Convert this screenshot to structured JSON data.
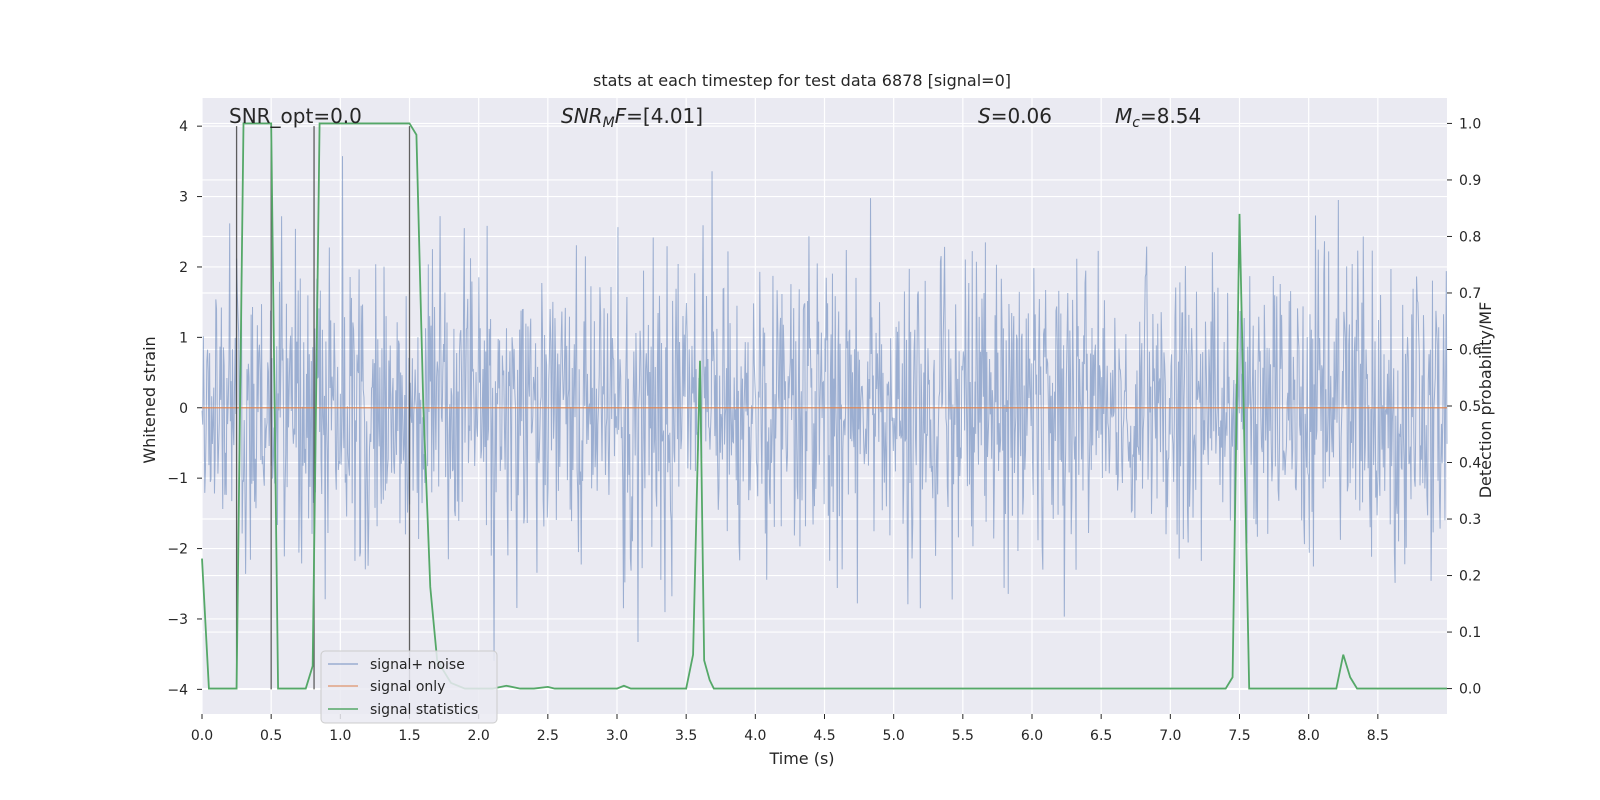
{
  "chart_data": {
    "type": "line",
    "title": "stats at each timestep for test data 6878 [signal=0]",
    "xlabel": "Time (s)",
    "ylabel": "Whitened strain",
    "ylabel_right": "Detection probability/MF",
    "xlim": [
      0,
      9
    ],
    "ylim": [
      -4.35,
      4.4
    ],
    "ylim_right": [
      -0.045,
      1.045
    ],
    "x_ticks": [
      "0.0",
      "0.5",
      "1.0",
      "1.5",
      "2.0",
      "2.5",
      "3.0",
      "3.5",
      "4.0",
      "4.5",
      "5.0",
      "5.5",
      "6.0",
      "6.5",
      "7.0",
      "7.5",
      "8.0",
      "8.5"
    ],
    "y_ticks": [
      "−4",
      "−3",
      "−2",
      "−1",
      "0",
      "1",
      "2",
      "3",
      "4"
    ],
    "y_ticks_right": [
      "0.0",
      "0.1",
      "0.2",
      "0.3",
      "0.4",
      "0.5",
      "0.6",
      "0.7",
      "0.8",
      "0.9",
      "1.0"
    ],
    "grid": true,
    "legend_position": "lower-left",
    "annotations": {
      "snr_opt": "SNR_opt=0.0",
      "snr_mf": "=[4.01]",
      "snr_mf_symbol": "SNR",
      "snr_mf_sub": "M",
      "snr_mf_tail": "F",
      "s_symbol": "S",
      "s_value": "=0.06",
      "mc_symbol": "M",
      "mc_sub": "c",
      "mc_value": "=8.54"
    },
    "series": [
      {
        "name": "signal+ noise",
        "color": "#4c72b0",
        "description_values": "white-ish Gaussian noise, amplitude roughly within [-3.6, 4.0]",
        "axis": "left"
      },
      {
        "name": "signal only",
        "color": "#dd8452",
        "values_constant": 0,
        "axis": "left"
      },
      {
        "name": "signal statistics",
        "color": "#55a868",
        "axis": "right",
        "x": [
          0.0,
          0.05,
          0.1,
          0.15,
          0.2,
          0.25,
          0.3,
          0.35,
          0.4,
          0.45,
          0.5,
          0.55,
          0.6,
          0.65,
          0.7,
          0.75,
          0.8,
          0.85,
          0.9,
          0.95,
          1.0,
          1.1,
          1.2,
          1.3,
          1.4,
          1.5,
          1.55,
          1.6,
          1.65,
          1.7,
          1.8,
          1.9,
          2.0,
          2.1,
          2.2,
          2.3,
          2.4,
          2.5,
          2.55,
          2.6,
          2.7,
          2.8,
          2.9,
          3.0,
          3.05,
          3.1,
          3.2,
          3.3,
          3.4,
          3.5,
          3.55,
          3.6,
          3.63,
          3.67,
          3.7,
          3.75,
          3.8,
          3.9,
          4.0,
          4.5,
          5.0,
          5.5,
          6.0,
          6.5,
          7.0,
          7.4,
          7.45,
          7.5,
          7.53,
          7.57,
          7.6,
          7.63,
          7.7,
          7.8,
          7.9,
          8.0,
          8.1,
          8.2,
          8.25,
          8.3,
          8.35,
          8.4,
          8.5,
          8.6,
          8.7,
          8.8,
          8.9,
          9.0
        ],
        "y": [
          0.23,
          0.0,
          0.0,
          0.0,
          0.0,
          0.0,
          1.0,
          1.0,
          1.0,
          1.0,
          1.0,
          0.0,
          0.0,
          0.0,
          0.0,
          0.0,
          0.04,
          1.0,
          1.0,
          1.0,
          1.0,
          1.0,
          1.0,
          1.0,
          1.0,
          1.0,
          0.98,
          0.5,
          0.18,
          0.05,
          0.01,
          0.0,
          0.0,
          0.0,
          0.005,
          0.0,
          0.0,
          0.003,
          0.0,
          0.0,
          0.0,
          0.0,
          0.0,
          0.0,
          0.005,
          0.0,
          0.0,
          0.0,
          0.0,
          0.0,
          0.06,
          0.58,
          0.05,
          0.015,
          0.0,
          0.0,
          0.0,
          0.0,
          0.0,
          0.0,
          0.0,
          0.0,
          0.0,
          0.0,
          0.0,
          0.0,
          0.02,
          0.84,
          0.5,
          0.0,
          0.0,
          0.0,
          0.0,
          0.0,
          0.0,
          0.0,
          0.0,
          0.0,
          0.06,
          0.02,
          0.0,
          0.0,
          0.0,
          0.0,
          0.0,
          0.0,
          0.0,
          0.0
        ]
      }
    ],
    "vertical_lines_x": [
      0.25,
      0.5,
      0.81,
      1.5
    ]
  }
}
